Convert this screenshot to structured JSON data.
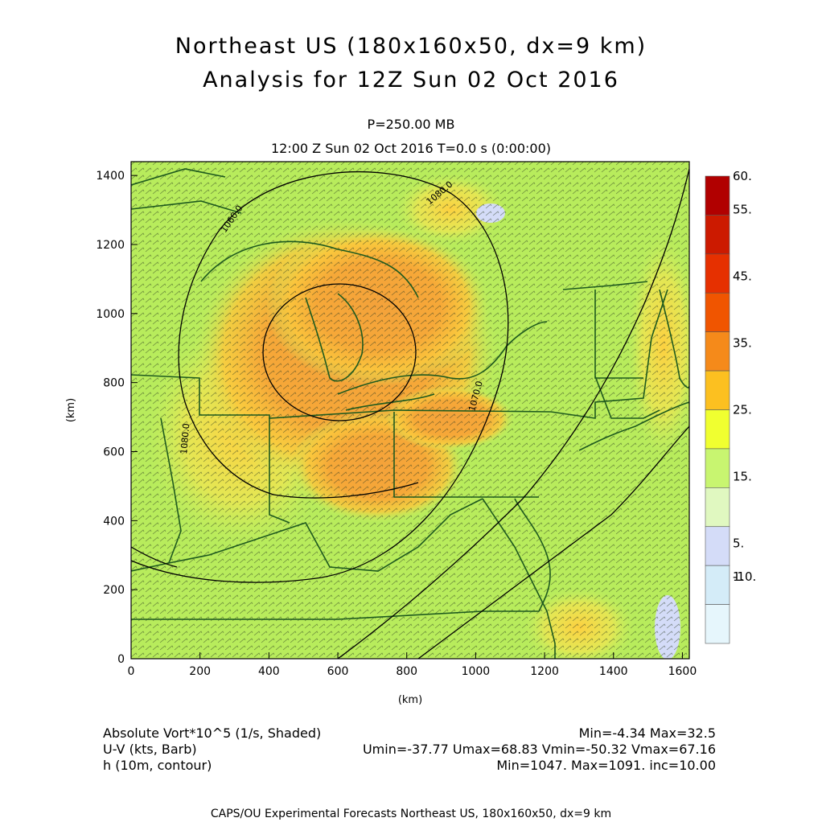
{
  "title": {
    "line1": "Northeast US (180x160x50, dx=9 km)",
    "line2": "Analysis for 12Z Sun 02 Oct 2016"
  },
  "subtitle": {
    "level": "P=250.00 MB",
    "time": "12:00 Z Sun 02 Oct 2016    T=0.0 s (0:00:00)"
  },
  "axes": {
    "x_label": "(km)",
    "y_label": "(km)",
    "x_ticks": [
      "0",
      "200",
      "400",
      "600",
      "800",
      "1000",
      "1200",
      "1400",
      "1600"
    ],
    "y_ticks": [
      "0",
      "200",
      "400",
      "600",
      "800",
      "1000",
      "1200",
      "1400"
    ],
    "x_range": [
      0,
      1620
    ],
    "y_range": [
      0,
      1440
    ]
  },
  "colorbar": {
    "labels": [
      "60.",
      "55.",
      "45.",
      "35.",
      "25.",
      "15.",
      "5.",
      "1.",
      "-10."
    ],
    "colors": [
      "#b10000",
      "#cc1a00",
      "#e63000",
      "#f05500",
      "#f58a1a",
      "#fcc020",
      "#f0ff30",
      "#c8f570",
      "#e0f8c0",
      "#d4dcf8",
      "#d4ecf8",
      "#e6f6fc"
    ]
  },
  "contours": {
    "labels": [
      "1080.0",
      "1060.0",
      "1070.0",
      "1080.0"
    ]
  },
  "field_info": {
    "vort": {
      "label": "Absolute Vort*10^5 (1/s, Shaded)",
      "stats": "Min=-4.34 Max=32.5"
    },
    "wind": {
      "label": "U-V (kts, Barb)",
      "stats": "Umin=-37.77 Umax=68.83 Vmin=-50.32 Vmax=67.16"
    },
    "height": {
      "label": "h (10m, contour)",
      "stats": "Min=1047. Max=1091. inc=10.00"
    }
  },
  "credit": "CAPS/OU Experimental Forecasts  Northeast US, 180x160x50, dx=9 km",
  "map_colors": {
    "background": "#b8ec5c",
    "orange": "#f5a030",
    "yellow": "#ffd838",
    "outline": "#1e5a1e"
  }
}
